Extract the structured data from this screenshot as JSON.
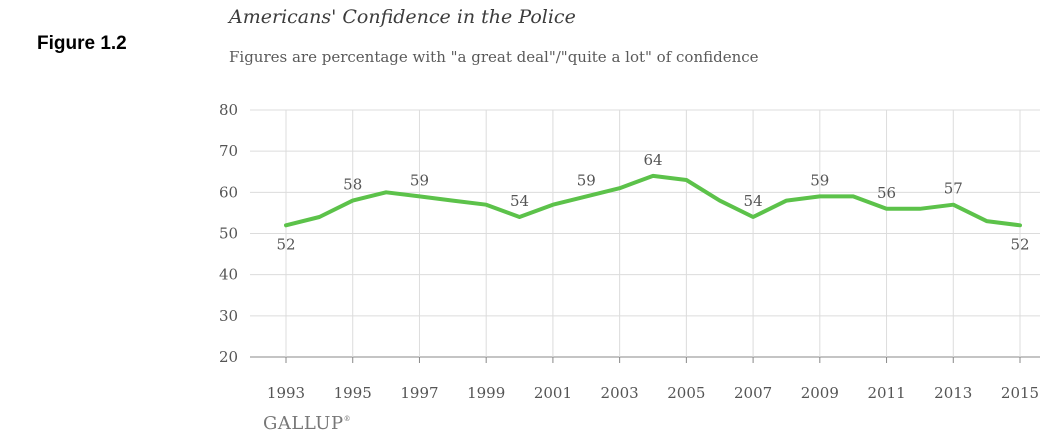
{
  "figure_label": "Figure 1.2",
  "brand": "GALLUP",
  "colors": {
    "line": "#5cc24a",
    "grid": "#dcdcdc",
    "axis": "#888888",
    "text": "#555555"
  },
  "chart_data": {
    "type": "line",
    "title": "Americans' Confidence in the Police",
    "subtitle": "Figures are percentage with \"a great deal\"/\"quite a lot\" of confidence",
    "xlabel": "",
    "ylabel": "",
    "ylim": [
      20,
      80
    ],
    "yticks": [
      20,
      30,
      40,
      50,
      60,
      70,
      80
    ],
    "xticks": [
      1993,
      1995,
      1997,
      1999,
      2001,
      2003,
      2005,
      2007,
      2009,
      2011,
      2013,
      2015
    ],
    "grid": true,
    "series": [
      {
        "x": [
          1993,
          1994,
          1995,
          1996,
          1997,
          1998,
          1999,
          2000,
          2001,
          2002,
          2003,
          2004,
          2005,
          2006,
          2007,
          2008,
          2009,
          2010,
          2011,
          2012,
          2013,
          2014,
          2015
        ],
        "values": [
          52,
          54,
          58,
          60,
          59,
          58,
          57,
          54,
          57,
          59,
          61,
          64,
          63,
          58,
          54,
          58,
          59,
          59,
          56,
          56,
          57,
          53,
          52
        ]
      }
    ],
    "data_labels": [
      {
        "x": 1993,
        "value": 52,
        "text": "52",
        "pos": "below"
      },
      {
        "x": 1995,
        "value": 58,
        "text": "58",
        "pos": "above"
      },
      {
        "x": 1997,
        "value": 59,
        "text": "59",
        "pos": "above"
      },
      {
        "x": 2000,
        "value": 54,
        "text": "54",
        "pos": "above"
      },
      {
        "x": 2002,
        "value": 59,
        "text": "59",
        "pos": "above"
      },
      {
        "x": 2004,
        "value": 64,
        "text": "64",
        "pos": "above"
      },
      {
        "x": 2007,
        "value": 54,
        "text": "54",
        "pos": "above"
      },
      {
        "x": 2009,
        "value": 59,
        "text": "59",
        "pos": "above"
      },
      {
        "x": 2011,
        "value": 56,
        "text": "56",
        "pos": "above"
      },
      {
        "x": 2013,
        "value": 57,
        "text": "57",
        "pos": "above"
      },
      {
        "x": 2015,
        "value": 52,
        "text": "52",
        "pos": "below"
      }
    ]
  }
}
